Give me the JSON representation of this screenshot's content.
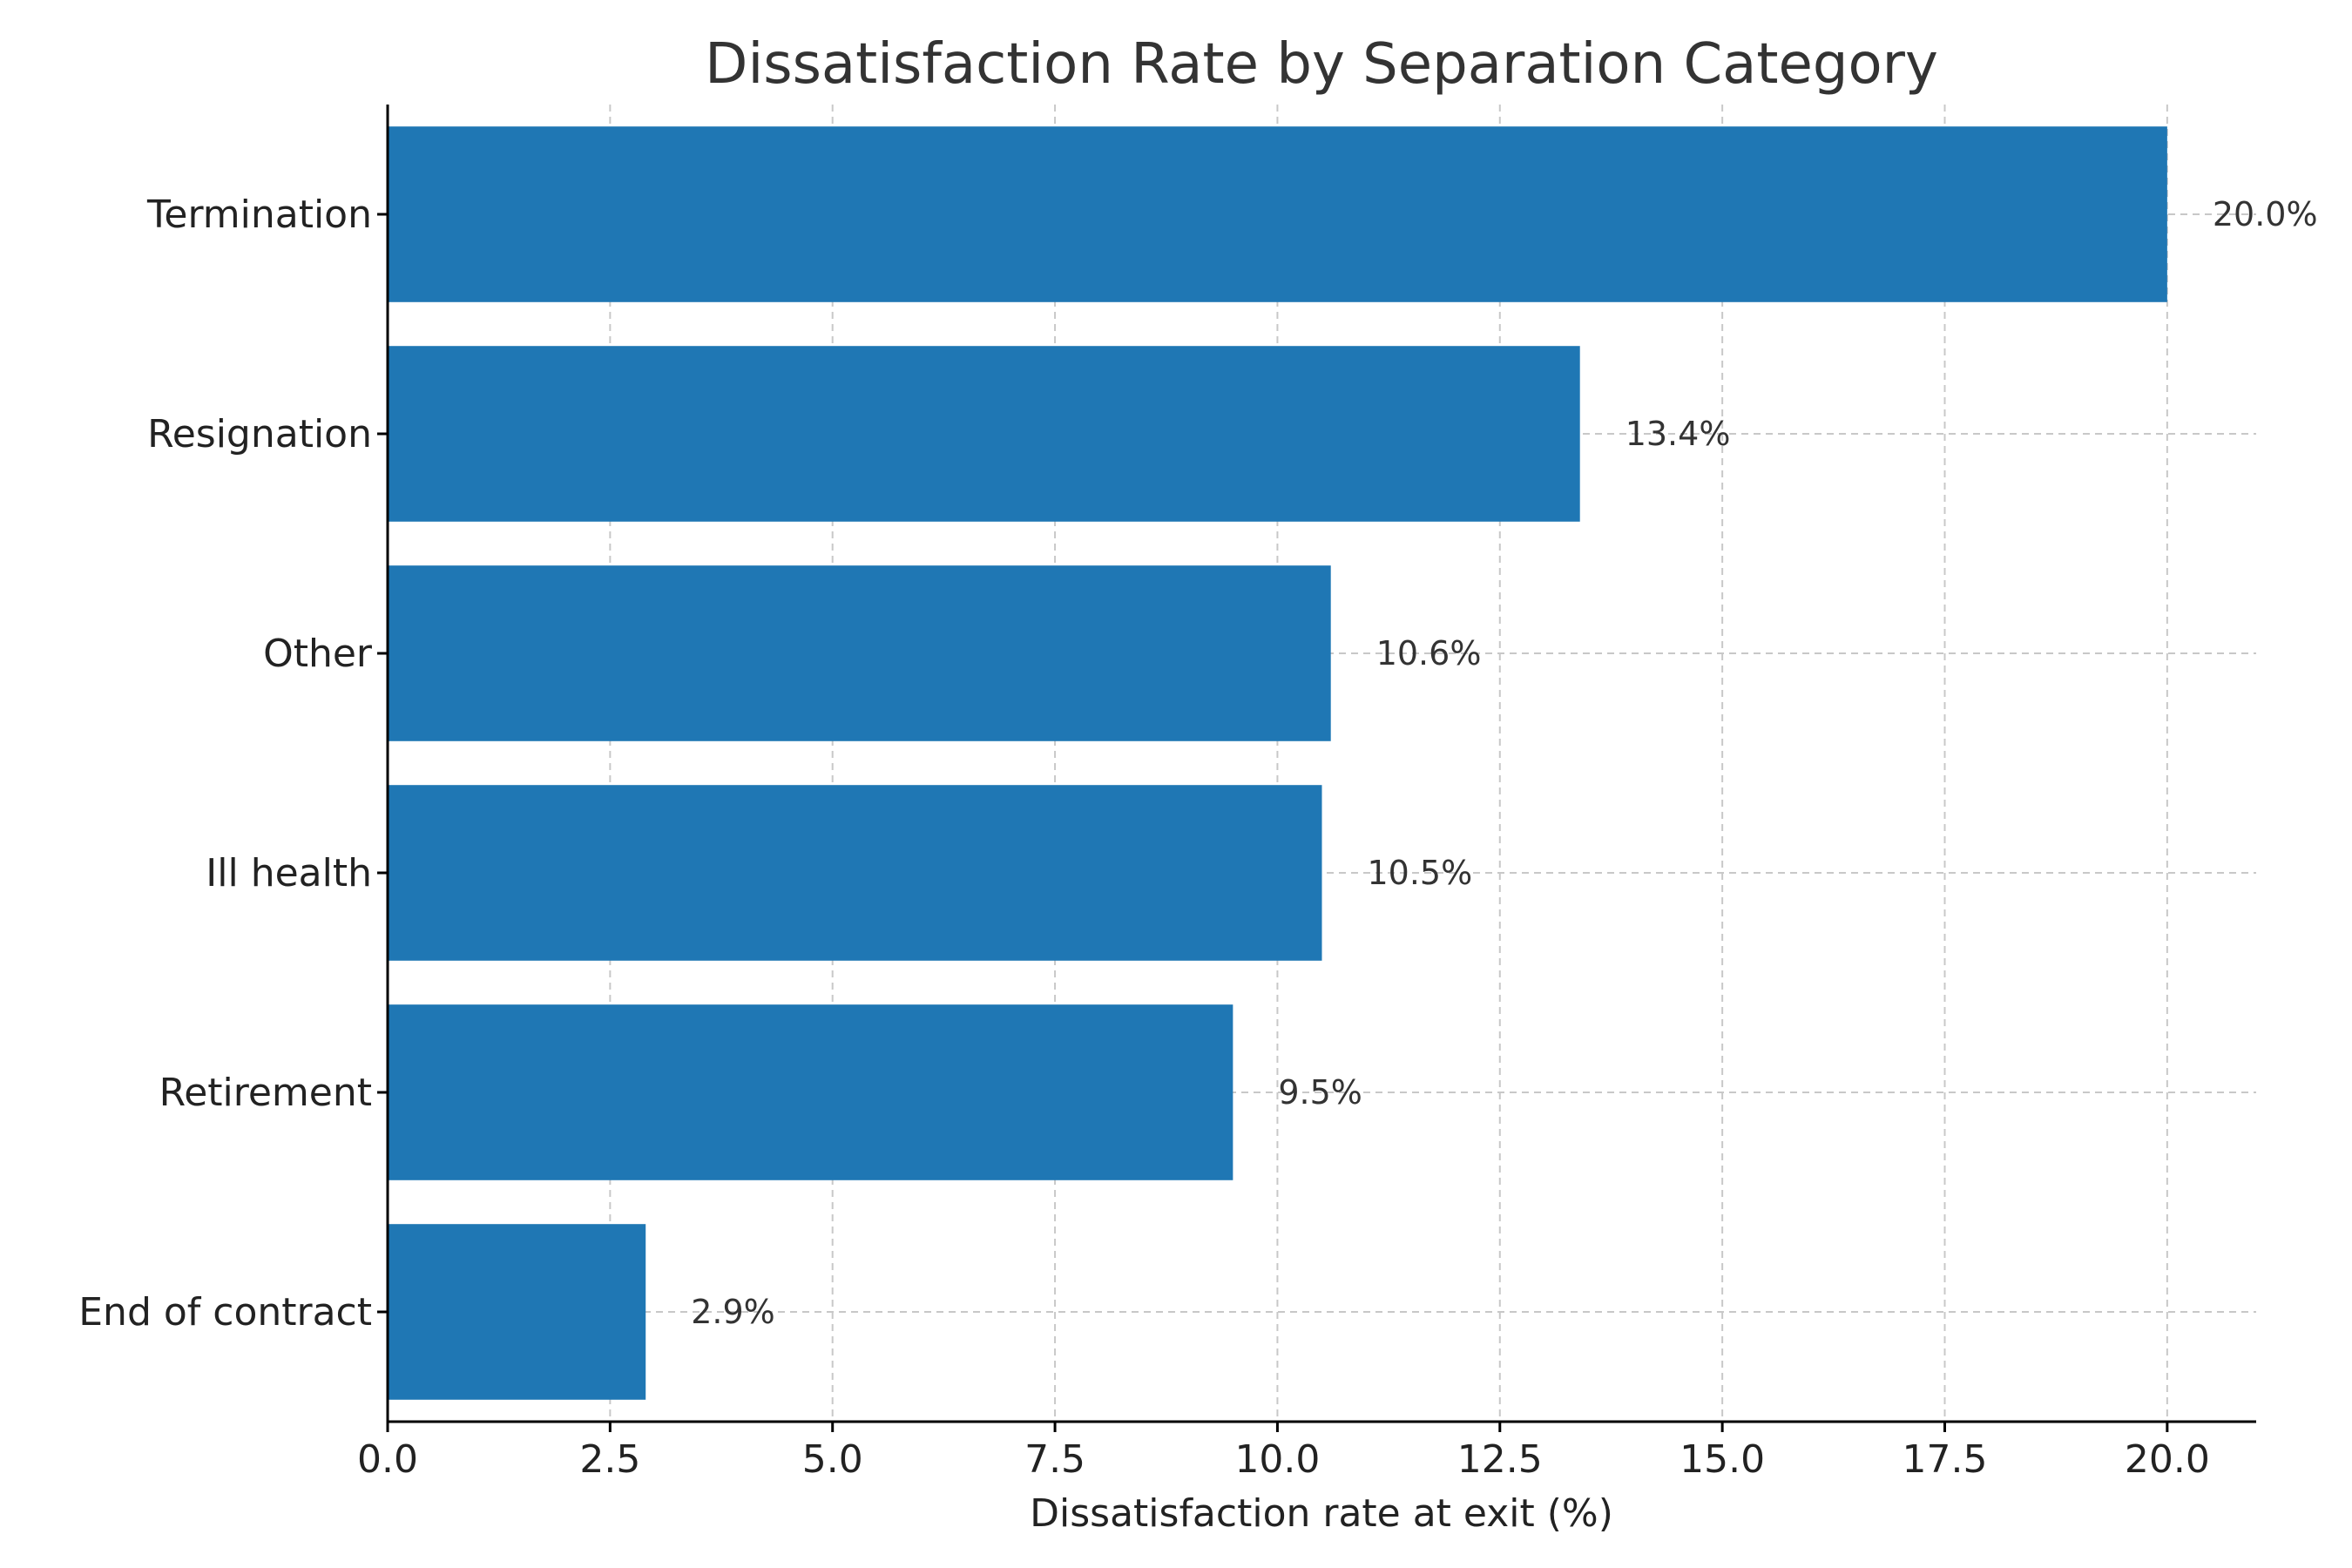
{
  "chart_data": {
    "type": "bar",
    "orientation": "horizontal",
    "title": "Dissatisfaction Rate by Separation Category",
    "xlabel": "Dissatisfaction rate at exit (%)",
    "ylabel": "",
    "categories": [
      "Termination",
      "Resignation",
      "Other",
      "Ill health",
      "Retirement",
      "End of contract"
    ],
    "values": [
      20.0,
      13.4,
      10.6,
      10.5,
      9.5,
      2.9
    ],
    "data_labels": [
      "20.0%",
      "13.4%",
      "10.6%",
      "10.5%",
      "9.5%",
      "2.9%"
    ],
    "xlim": [
      0,
      21
    ],
    "xticks": [
      0,
      2.5,
      5,
      7.5,
      10,
      12.5,
      15,
      17.5,
      20
    ],
    "xtick_labels": [
      "0.0",
      "2.5",
      "5.0",
      "7.5",
      "10.0",
      "12.5",
      "15.0",
      "17.5",
      "20.0"
    ],
    "grid": true,
    "bar_color": "#1f77b4"
  }
}
